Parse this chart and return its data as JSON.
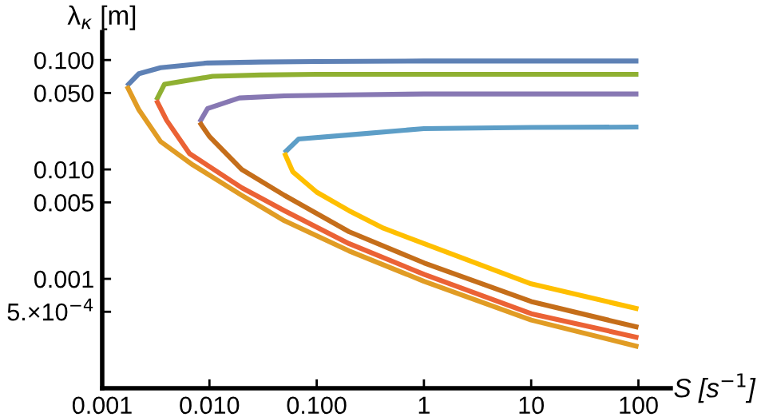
{
  "chart_data": {
    "type": "line",
    "xlabel": "S [s$^{−1}$]",
    "ylabel": "λ$_{κ}$ [m]",
    "log": "xy",
    "xlim": [
      0.001,
      200
    ],
    "ylim": [
      0.0001,
      0.18
    ],
    "xticks": [
      {
        "value": 0.001,
        "label": "0.001"
      },
      {
        "value": 0.01,
        "label": "0.010"
      },
      {
        "value": 0.1,
        "label": "0.100"
      },
      1,
      10,
      100
    ],
    "yticks": [
      {
        "value": 0.1,
        "label": "0.100"
      },
      {
        "value": 0.05,
        "label": "0.050"
      },
      {
        "value": 0.01,
        "label": "0.010"
      },
      {
        "value": 0.005,
        "label": "0.005"
      },
      {
        "value": 0.001,
        "label": "0.001"
      },
      {
        "value": 0.0005,
        "label": "5.×10$^{−4}$"
      }
    ],
    "grid": false,
    "marker": "none",
    "line_style": "solid",
    "series": [
      {
        "color": "#5e81b5",
        "x": [
          0.0017,
          0.0022,
          0.0035,
          0.0096,
          0.03,
          0.1,
          1,
          10,
          100
        ],
        "values": [
          0.058,
          0.075,
          0.085,
          0.094,
          0.096,
          0.097,
          0.098,
          0.098,
          0.098
        ]
      },
      {
        "color": "#e19c24",
        "x": [
          0.0017,
          0.0022,
          0.0035,
          0.007,
          0.02,
          0.05,
          0.2,
          1,
          10,
          100
        ],
        "values": [
          0.058,
          0.035,
          0.018,
          0.011,
          0.0058,
          0.0034,
          0.0018,
          0.00095,
          0.00042,
          0.00024
        ]
      },
      {
        "color": "#8fb032",
        "x": [
          0.0032,
          0.0038,
          0.0107,
          0.03,
          0.1,
          1,
          10,
          100
        ],
        "values": [
          0.043,
          0.06,
          0.071,
          0.073,
          0.074,
          0.074,
          0.074,
          0.074
        ]
      },
      {
        "color": "#eb6235",
        "x": [
          0.0032,
          0.004,
          0.0065,
          0.02,
          0.05,
          0.2,
          1,
          10,
          100
        ],
        "values": [
          0.043,
          0.028,
          0.014,
          0.0068,
          0.0042,
          0.0021,
          0.0011,
          0.00048,
          0.00029
        ]
      },
      {
        "color": "#8778b3",
        "x": [
          0.0081,
          0.0096,
          0.019,
          0.05,
          0.2,
          1,
          10,
          100
        ],
        "values": [
          0.027,
          0.036,
          0.045,
          0.047,
          0.048,
          0.049,
          0.049,
          0.049
        ]
      },
      {
        "color": "#c56e1a",
        "x": [
          0.0081,
          0.01,
          0.02,
          0.05,
          0.2,
          1,
          10,
          100
        ],
        "values": [
          0.027,
          0.02,
          0.01,
          0.0058,
          0.0027,
          0.0014,
          0.00062,
          0.00036
        ]
      },
      {
        "color": "#5d9ec7",
        "x": [
          0.05,
          0.068,
          0.19,
          1,
          10,
          100
        ],
        "values": [
          0.0142,
          0.019,
          0.0206,
          0.0236,
          0.0242,
          0.0244
        ]
      },
      {
        "color": "#ffbf00",
        "x": [
          0.05,
          0.06,
          0.1,
          0.2,
          0.42,
          1,
          10,
          100
        ],
        "values": [
          0.0142,
          0.0095,
          0.0062,
          0.0042,
          0.0029,
          0.0021,
          0.0009,
          0.00053
        ]
      }
    ]
  }
}
